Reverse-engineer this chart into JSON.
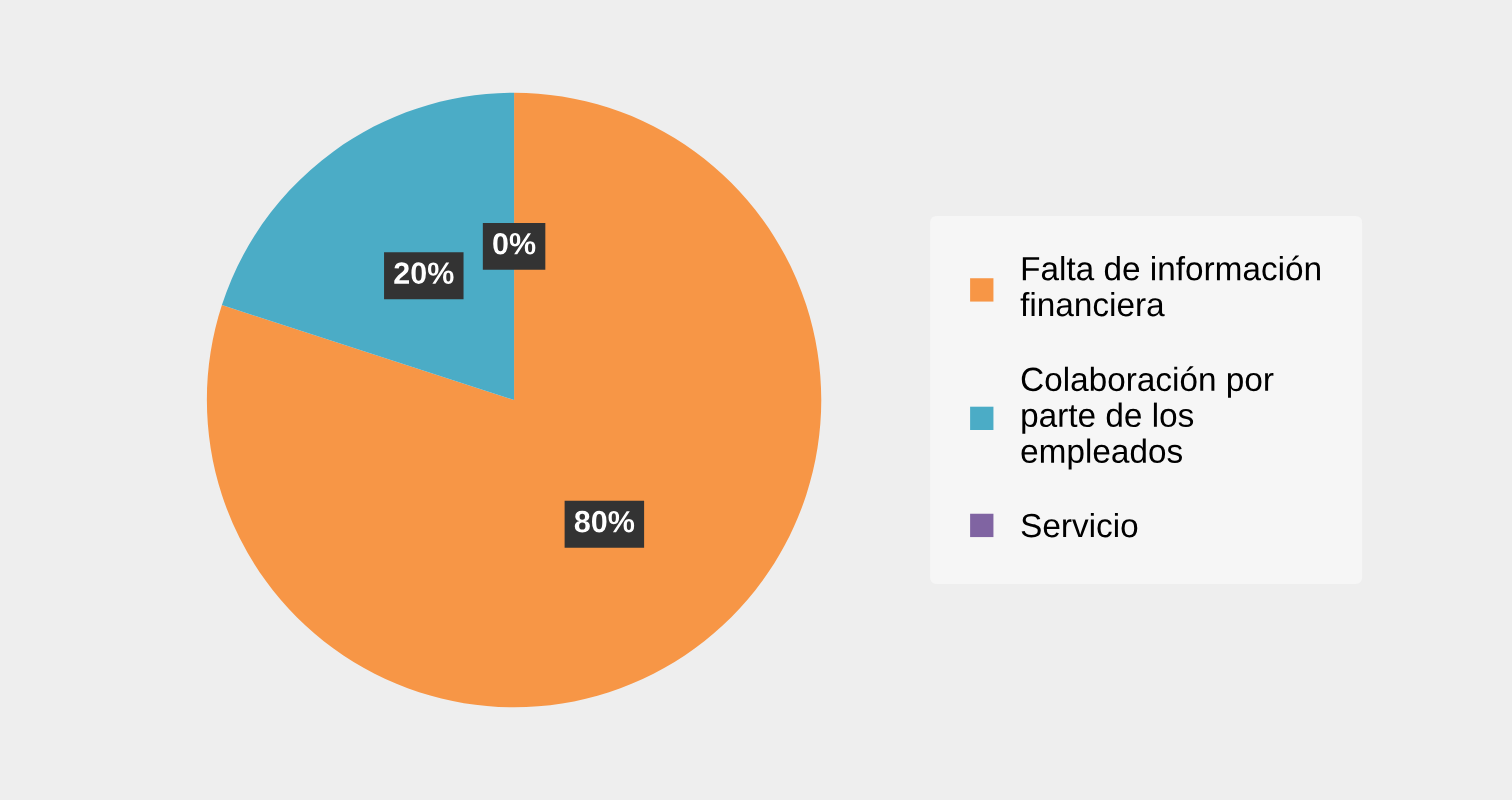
{
  "chart_data": {
    "type": "pie",
    "categories": [
      "Falta de información financiera",
      "Colaboración por parte de los empleados",
      "Servicio"
    ],
    "values": [
      80,
      20,
      0
    ],
    "colors": [
      "#f79646",
      "#4bacc6",
      "#8064a2"
    ],
    "value_labels": [
      "80%",
      "20%",
      "0%"
    ],
    "legend": "right"
  }
}
